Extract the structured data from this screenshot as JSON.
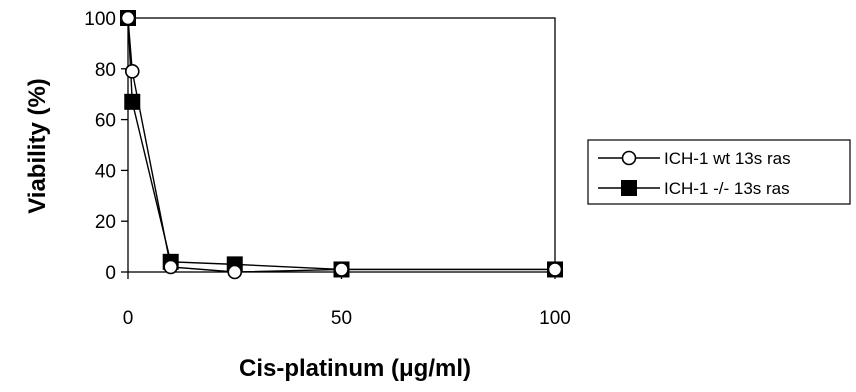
{
  "chart_data": {
    "type": "line",
    "title": "",
    "xlabel": "Cis-platinum (μg/ml)",
    "ylabel": "Viability (%)",
    "xlim": [
      0,
      100
    ],
    "ylim": [
      0,
      100
    ],
    "xticks": [
      0,
      50,
      100
    ],
    "yticks": [
      0,
      20,
      40,
      60,
      80,
      100
    ],
    "grid": false,
    "legend_position": "right",
    "series": [
      {
        "name": "ICH-1 wt 13s ras",
        "marker": "open-circle",
        "color": "#000000",
        "x": [
          0,
          1,
          10,
          25,
          50,
          100
        ],
        "y": [
          100,
          79,
          2,
          0,
          1,
          1
        ]
      },
      {
        "name": "ICH-1 -/- 13s ras",
        "marker": "filled-square",
        "color": "#000000",
        "x": [
          0,
          1,
          10,
          25,
          50,
          100
        ],
        "y": [
          100,
          67,
          4,
          3,
          1,
          1
        ]
      }
    ]
  }
}
